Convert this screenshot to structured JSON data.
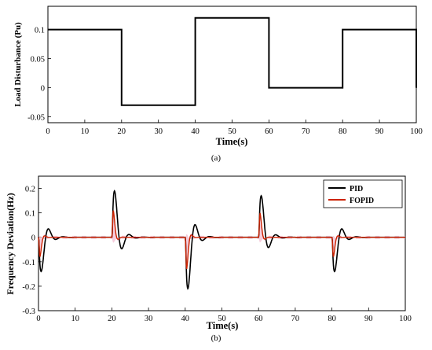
{
  "chart_data": [
    {
      "type": "line",
      "subtitle": "(a)",
      "xlabel": "Time(s)",
      "ylabel": "Load Disturbance (Pu)",
      "xlim": [
        0,
        100
      ],
      "ylim": [
        -0.06,
        0.14
      ],
      "xticks": [
        "0",
        "10",
        "20",
        "30",
        "40",
        "50",
        "60",
        "70",
        "80",
        "90",
        "100"
      ],
      "yticks": [
        "-0.05",
        "0",
        "0.05",
        "0.1"
      ],
      "series": [
        {
          "color": "#000000",
          "x": [
            0,
            20,
            20,
            40,
            40,
            60,
            60,
            80,
            80,
            100,
            100
          ],
          "y": [
            0.1,
            0.1,
            -0.03,
            -0.03,
            0.12,
            0.12,
            0,
            0,
            0.1,
            0.1,
            0
          ]
        }
      ]
    },
    {
      "type": "line",
      "subtitle": "(b)",
      "xlabel": "Time(s)",
      "ylabel": "Frequency Deviation(Hz)",
      "xlim": [
        0,
        100
      ],
      "ylim": [
        -0.3,
        0.25
      ],
      "xticks": [
        "0",
        "10",
        "20",
        "30",
        "40",
        "50",
        "60",
        "70",
        "80",
        "90",
        "100"
      ],
      "yticks": [
        "-0.3",
        "-0.2",
        "-0.1",
        "0",
        "0.1",
        "0.2"
      ],
      "legend_position": "top-right",
      "disturbance_times": [
        0,
        20,
        40,
        60,
        80
      ],
      "series": [
        {
          "name": "PID",
          "color": "#000000",
          "peaks": [
            -0.14,
            0.19,
            -0.21,
            0.17,
            -0.14
          ]
        },
        {
          "name": "FOPID",
          "color": "#cc2200",
          "peaks": [
            -0.08,
            0.11,
            -0.13,
            0.1,
            -0.08
          ]
        }
      ]
    }
  ]
}
